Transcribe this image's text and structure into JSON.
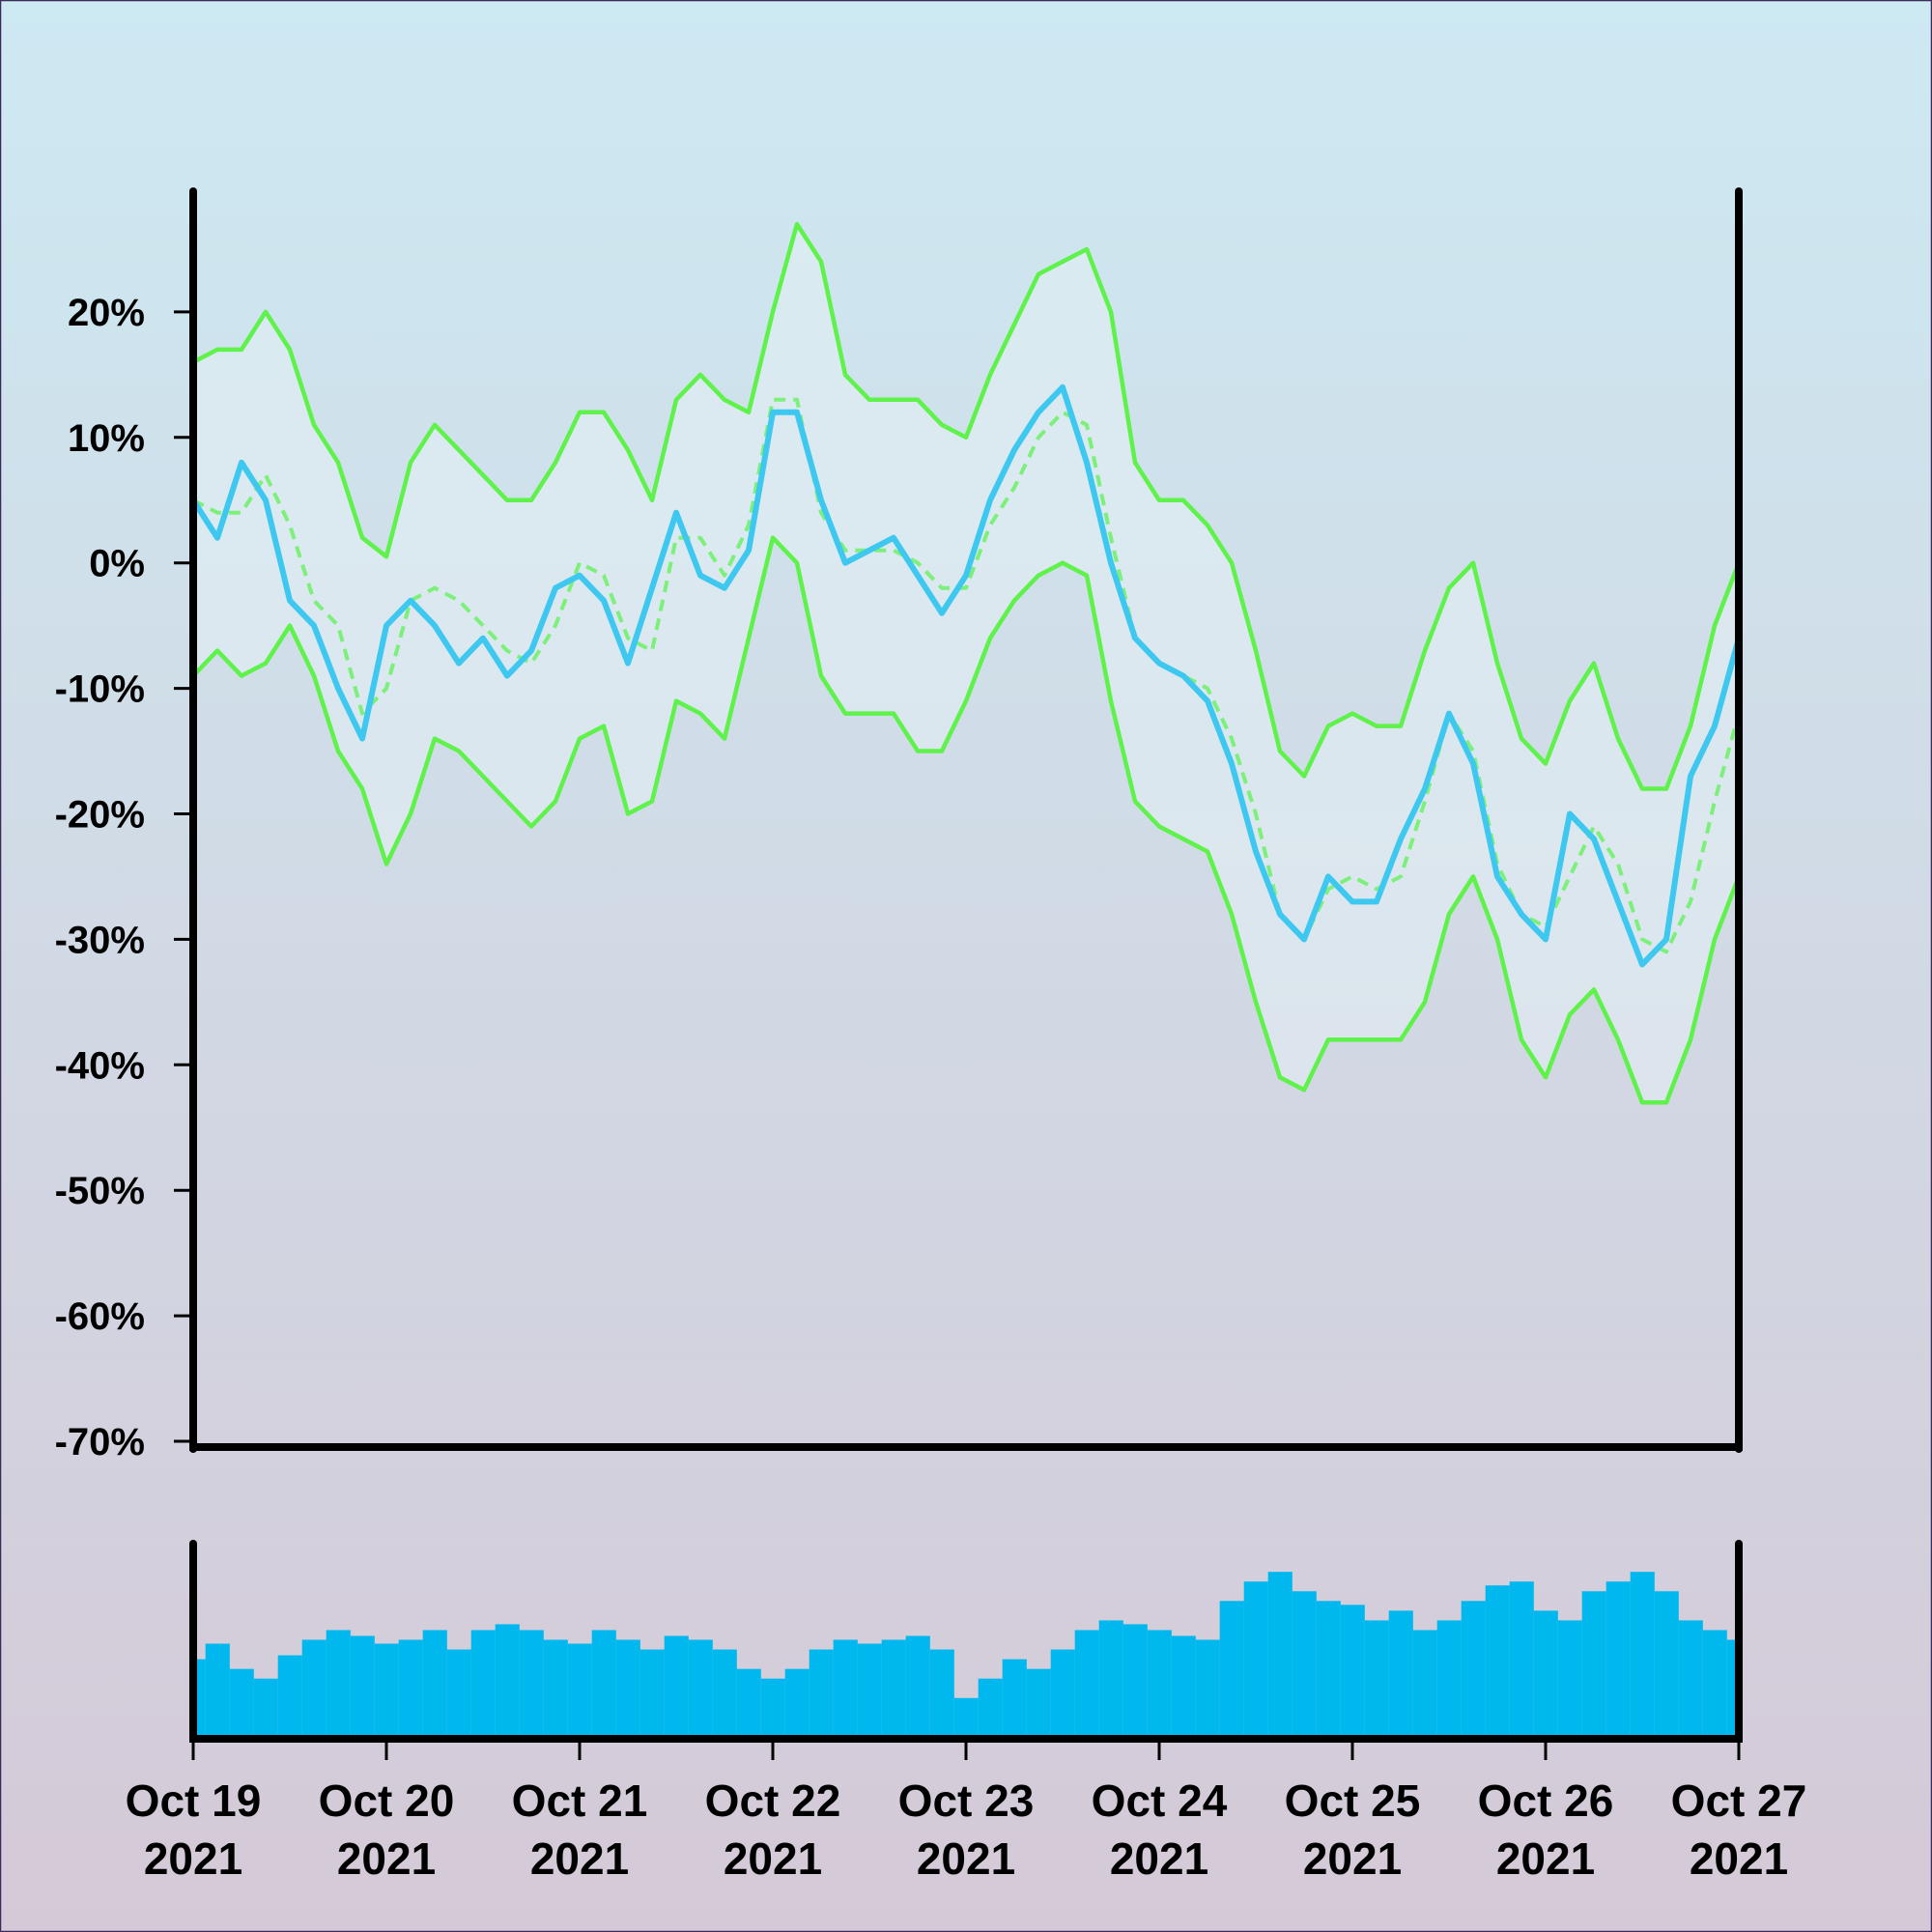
{
  "chart_data": [
    {
      "type": "line",
      "x": [
        "2021-10-19T00:00",
        "2021-10-19T03:00",
        "2021-10-19T06:00",
        "2021-10-19T09:00",
        "2021-10-19T12:00",
        "2021-10-19T15:00",
        "2021-10-19T18:00",
        "2021-10-19T21:00",
        "2021-10-20T00:00",
        "2021-10-20T03:00",
        "2021-10-20T06:00",
        "2021-10-20T09:00",
        "2021-10-20T12:00",
        "2021-10-20T15:00",
        "2021-10-20T18:00",
        "2021-10-20T21:00",
        "2021-10-21T00:00",
        "2021-10-21T03:00",
        "2021-10-21T06:00",
        "2021-10-21T09:00",
        "2021-10-21T12:00",
        "2021-10-21T15:00",
        "2021-10-21T18:00",
        "2021-10-21T21:00",
        "2021-10-22T00:00",
        "2021-10-22T03:00",
        "2021-10-22T06:00",
        "2021-10-22T09:00",
        "2021-10-22T12:00",
        "2021-10-22T15:00",
        "2021-10-22T18:00",
        "2021-10-22T21:00",
        "2021-10-23T00:00",
        "2021-10-23T03:00",
        "2021-10-23T06:00",
        "2021-10-23T09:00",
        "2021-10-23T12:00",
        "2021-10-23T15:00",
        "2021-10-23T18:00",
        "2021-10-23T21:00",
        "2021-10-24T00:00",
        "2021-10-24T03:00",
        "2021-10-24T06:00",
        "2021-10-24T09:00",
        "2021-10-24T12:00",
        "2021-10-24T15:00",
        "2021-10-24T18:00",
        "2021-10-24T21:00",
        "2021-10-25T00:00",
        "2021-10-25T03:00",
        "2021-10-25T06:00",
        "2021-10-25T09:00",
        "2021-10-25T12:00",
        "2021-10-25T15:00",
        "2021-10-25T18:00",
        "2021-10-25T21:00",
        "2021-10-26T00:00",
        "2021-10-26T03:00",
        "2021-10-26T06:00",
        "2021-10-26T09:00",
        "2021-10-26T12:00",
        "2021-10-26T15:00",
        "2021-10-26T18:00",
        "2021-10-26T21:00",
        "2021-10-27T00:00"
      ],
      "series": [
        {
          "color": "#3ec8f0",
          "width": 6,
          "values": [
            5,
            2,
            8,
            5,
            -3,
            -5,
            -10,
            -14,
            -5,
            -3,
            -5,
            -8,
            -6,
            -9,
            -7,
            -2,
            -1,
            -3,
            -8,
            -2,
            4,
            -1,
            -2,
            1,
            12,
            12,
            5,
            0,
            1,
            2,
            -1,
            -4,
            -1,
            5,
            9,
            12,
            14,
            8,
            0,
            -6,
            -8,
            -9,
            -11,
            -16,
            -23,
            -28,
            -30,
            -25,
            -27,
            -27,
            -22,
            -18,
            -12,
            -16,
            -25,
            -28,
            -30,
            -20,
            -22,
            -27,
            -32,
            -30,
            -17,
            -13,
            -6
          ]
        },
        {
          "color": "#5ef24a",
          "width": 4.5,
          "values": [
            16,
            17,
            17,
            20,
            17,
            11,
            8,
            2,
            0.5,
            8,
            11,
            9,
            7,
            5,
            5,
            8,
            12,
            12,
            9,
            5,
            13,
            15,
            13,
            12,
            20,
            27,
            24,
            15,
            13,
            13,
            13,
            11,
            10,
            15,
            19,
            23,
            24,
            25,
            20,
            8,
            5,
            5,
            3,
            0,
            -7,
            -15,
            -17,
            -13,
            -12,
            -13,
            -13,
            -7,
            -2,
            0,
            -8,
            -14,
            -16,
            -11,
            -8,
            -14,
            -18,
            -18,
            -13,
            -5,
            0
          ]
        },
        {
          "color": "#7cf07a",
          "width": 4,
          "dash": true,
          "values": [
            5,
            4,
            4,
            7,
            3,
            -3,
            -5,
            -12,
            -10,
            -3,
            -2,
            -3,
            -5,
            -7,
            -8,
            -5,
            0,
            -1,
            -6,
            -7,
            2,
            2,
            -1,
            3,
            13,
            13,
            4,
            1,
            1,
            1,
            0,
            -2,
            -2,
            3,
            6,
            10,
            12,
            11,
            2,
            -6,
            -8,
            -9,
            -10,
            -14,
            -20,
            -28,
            -30,
            -26,
            -25,
            -26,
            -25,
            -19,
            -12,
            -15,
            -24,
            -28,
            -29,
            -25,
            -21,
            -24,
            -30,
            -31,
            -27,
            -19,
            -12
          ]
        },
        {
          "color": "#5ef24a",
          "width": 4.5,
          "values": [
            -9,
            -7,
            -9,
            -8,
            -5,
            -9,
            -15,
            -18,
            -24,
            -20,
            -14,
            -15,
            -17,
            -19,
            -21,
            -19,
            -14,
            -13,
            -20,
            -19,
            -11,
            -12,
            -14,
            -6,
            2,
            0,
            -9,
            -12,
            -12,
            -12,
            -15,
            -15,
            -11,
            -6,
            -3,
            -1,
            0,
            -1,
            -11,
            -19,
            -21,
            -22,
            -23,
            -28,
            -35,
            -41,
            -42,
            -38,
            -38,
            -38,
            -38,
            -35,
            -28,
            -25,
            -30,
            -38,
            -41,
            -36,
            -34,
            -38,
            -43,
            -43,
            -38,
            -30,
            -25
          ]
        }
      ],
      "band_fill": "#e2eef3",
      "xlim": [
        "2021-10-19T00:00",
        "2021-10-27T00:00"
      ],
      "ylim": [
        -70,
        30
      ],
      "yticks": [
        {
          "value": 20,
          "label": "20%"
        },
        {
          "value": 10,
          "label": "10%"
        },
        {
          "value": 0,
          "label": "0%"
        },
        {
          "value": -10,
          "label": "-10%"
        },
        {
          "value": -20,
          "label": "-20%"
        },
        {
          "value": -30,
          "label": "-30%"
        },
        {
          "value": -40,
          "label": "-40%"
        },
        {
          "value": -50,
          "label": "-50%"
        },
        {
          "value": -60,
          "label": "-60%"
        },
        {
          "value": -70,
          "label": "-70%"
        }
      ]
    },
    {
      "type": "bar",
      "color": "#00b8ee",
      "values": [
        40,
        48,
        35,
        30,
        42,
        50,
        55,
        52,
        48,
        50,
        55,
        45,
        55,
        58,
        55,
        50,
        48,
        55,
        50,
        45,
        52,
        50,
        45,
        35,
        30,
        35,
        45,
        50,
        48,
        50,
        52,
        45,
        20,
        30,
        40,
        35,
        45,
        55,
        60,
        58,
        55,
        52,
        50,
        70,
        80,
        85,
        75,
        70,
        68,
        60,
        65,
        55,
        60,
        70,
        78,
        80,
        65,
        60,
        75,
        80,
        85,
        75,
        60,
        55,
        50
      ],
      "ylim": [
        0,
        100
      ],
      "xticks": [
        {
          "value": "2021-10-19T00:00",
          "label": "Oct 19\n2021"
        },
        {
          "value": "2021-10-20T00:00",
          "label": "Oct 20\n2021"
        },
        {
          "value": "2021-10-21T00:00",
          "label": "Oct 21\n2021"
        },
        {
          "value": "2021-10-22T00:00",
          "label": "Oct 22\n2021"
        },
        {
          "value": "2021-10-23T00:00",
          "label": "Oct 23\n2021"
        },
        {
          "value": "2021-10-24T00:00",
          "label": "Oct 24\n2021"
        },
        {
          "value": "2021-10-25T00:00",
          "label": "Oct 25\n2021"
        },
        {
          "value": "2021-10-26T00:00",
          "label": "Oct 26\n2021"
        },
        {
          "value": "2021-10-27T00:00",
          "label": "Oct 27\n2021"
        }
      ]
    }
  ]
}
